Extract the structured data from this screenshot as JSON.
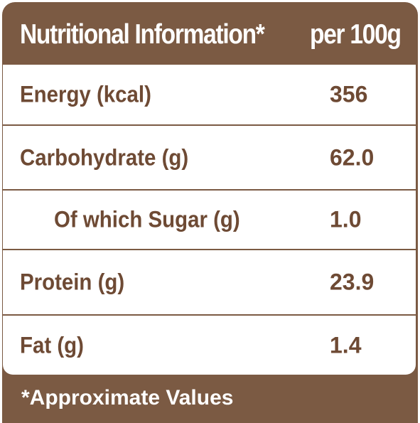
{
  "header": {
    "title": "Nutritional Information*",
    "unit": "per 100g"
  },
  "rows": [
    {
      "label": "Energy (kcal)",
      "value": "356",
      "indent": false
    },
    {
      "label": "Carbohydrate (g)",
      "value": "62.0",
      "indent": false
    },
    {
      "label": "Of which Sugar (g)",
      "value": "1.0",
      "indent": true
    },
    {
      "label": "Protein (g)",
      "value": "23.9",
      "indent": false
    },
    {
      "label": "Fat (g)",
      "value": "1.4",
      "indent": false
    }
  ],
  "footnote": "*Approximate Values",
  "colors": {
    "panel": "#7b5a43",
    "text": "#6e4a34",
    "background": "#ffffff"
  }
}
